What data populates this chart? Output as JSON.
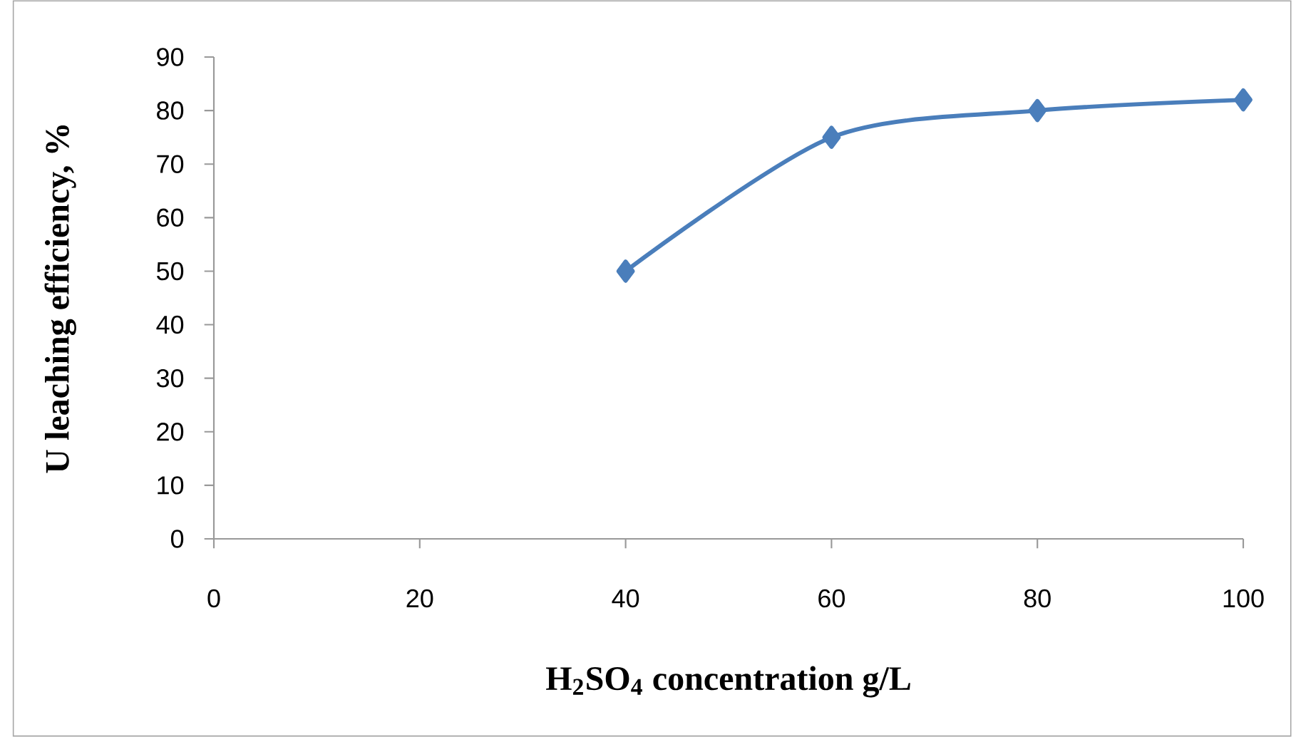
{
  "chart_data": {
    "type": "line",
    "xlabel": "H$_{2}$SO$_{4}$ concentration g/L",
    "ylabel": "U leaching efficiency, %",
    "x": [
      40,
      60,
      80,
      100
    ],
    "series": [
      {
        "color": "#4a7ebb",
        "values": [
          50,
          75,
          80,
          82
        ]
      }
    ],
    "xlim": [
      0,
      100
    ],
    "xticks": [
      0,
      20,
      40,
      60,
      80,
      100
    ],
    "ylim": [
      0,
      90
    ],
    "yticks": [
      0,
      10,
      20,
      30,
      40,
      50,
      60,
      70,
      80,
      90
    ],
    "marker": "diamond",
    "line_style": "solid",
    "grid": false
  }
}
